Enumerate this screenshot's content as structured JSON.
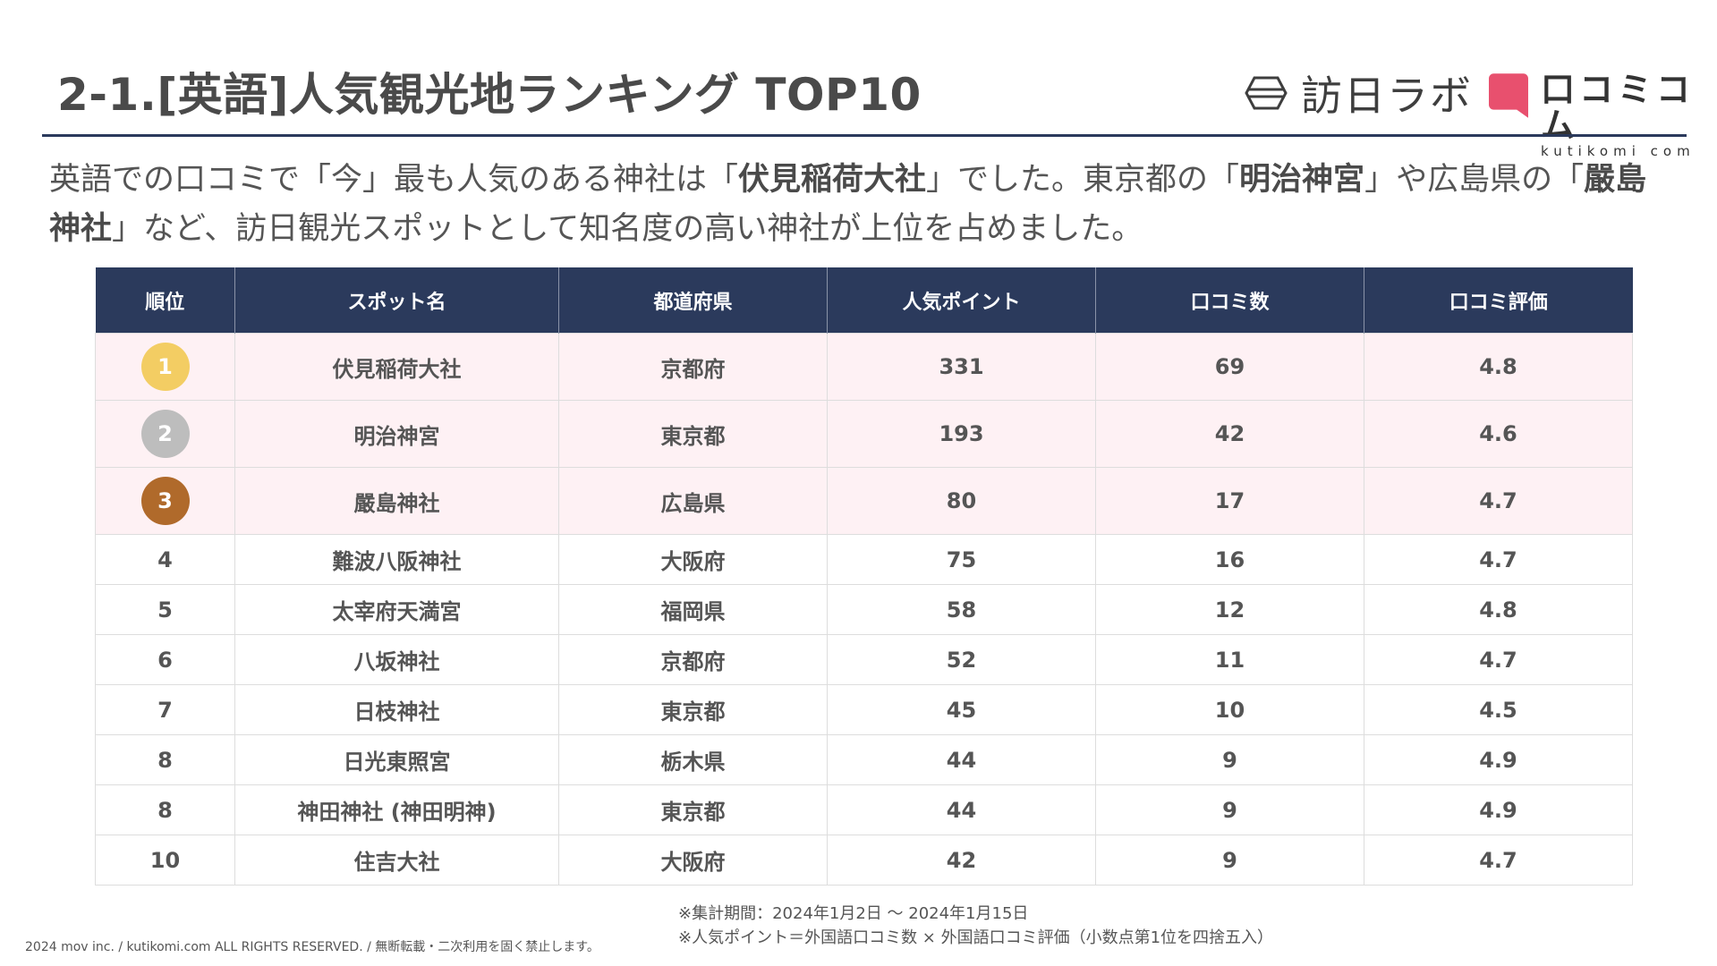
{
  "header": {
    "title": "2-1.[英語]人気観光地ランキング TOP10",
    "logo_houjin": "訪日ラボ",
    "logo_kutikomi_main": "口コミコム",
    "logo_kutikomi_sub": "kutikomi com",
    "rule_color": "#2b3a5c"
  },
  "intro": {
    "t1": "英語での口コミで「今」最も人気のある神社は「",
    "b1": "伏見稲荷大社",
    "t2": "」でした。東京都の「",
    "b2": "明治神宮",
    "t3": "」や広島県の「",
    "b3": "嚴島神社",
    "t4": "」など、訪日観光スポットとして知名度の高い神社が上位を占めました。"
  },
  "table": {
    "headers": [
      "順位",
      "スポット名",
      "都道府県",
      "人気ポイント",
      "口コミ数",
      "口コミ評価"
    ],
    "header_color": "#2b3a5c",
    "top_row_color": "#fef1f4",
    "rows": [
      {
        "rank": "1",
        "spot": "伏見稲荷大社",
        "pref": "京都府",
        "points": "331",
        "count": "69",
        "rating": "4.8",
        "medal_color": "#f3cd63"
      },
      {
        "rank": "2",
        "spot": "明治神宮",
        "pref": "東京都",
        "points": "193",
        "count": "42",
        "rating": "4.6",
        "medal_color": "#bdbdbd"
      },
      {
        "rank": "3",
        "spot": "嚴島神社",
        "pref": "広島県",
        "points": "80",
        "count": "17",
        "rating": "4.7",
        "medal_color": "#b06a2b"
      },
      {
        "rank": "4",
        "spot": "難波八阪神社",
        "pref": "大阪府",
        "points": "75",
        "count": "16",
        "rating": "4.7"
      },
      {
        "rank": "5",
        "spot": "太宰府天満宮",
        "pref": "福岡県",
        "points": "58",
        "count": "12",
        "rating": "4.8"
      },
      {
        "rank": "6",
        "spot": "八坂神社",
        "pref": "京都府",
        "points": "52",
        "count": "11",
        "rating": "4.7"
      },
      {
        "rank": "7",
        "spot": "日枝神社",
        "pref": "東京都",
        "points": "45",
        "count": "10",
        "rating": "4.5"
      },
      {
        "rank": "8",
        "spot": "日光東照宮",
        "pref": "栃木県",
        "points": "44",
        "count": "9",
        "rating": "4.9"
      },
      {
        "rank": "8",
        "spot": "神田神社 (神田明神)",
        "pref": "東京都",
        "points": "44",
        "count": "9",
        "rating": "4.9"
      },
      {
        "rank": "10",
        "spot": "住吉大社",
        "pref": "大阪府",
        "points": "42",
        "count": "9",
        "rating": "4.7"
      }
    ]
  },
  "notes": {
    "period": "※集計期間：2024年1月2日 〜 2024年1月15日",
    "formula": "※人気ポイント＝外国語口コミ数 × 外国語口コミ評価（小数点第1位を四捨五入）"
  },
  "footer": {
    "copyright": "2024 mov inc. / kutikomi.com ALL RIGHTS RESERVED. / 無断転載・二次利用を固く禁止します。"
  }
}
